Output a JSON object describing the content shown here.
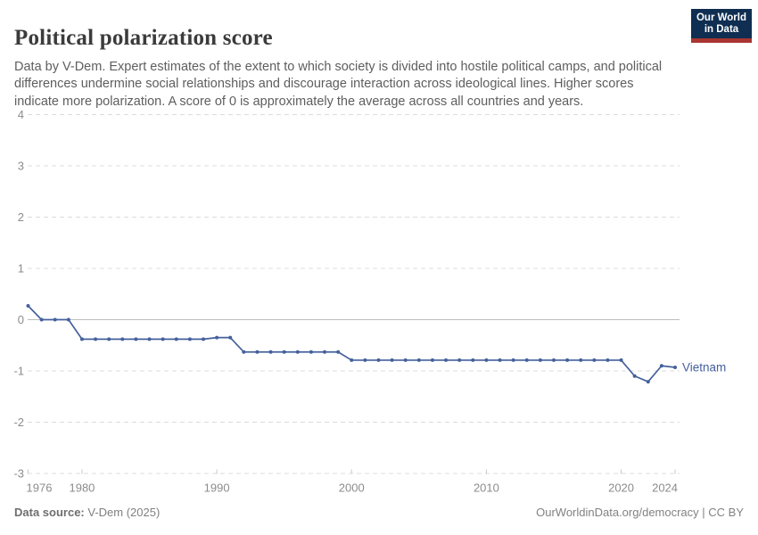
{
  "header": {
    "title": "Political polarization score",
    "subtitle": "Data by V-Dem. Expert estimates of the extent to which society is divided into hostile political camps, and political differences undermine social relationships and discourage interaction across ideological lines. Higher scores indicate more polarization. A score of 0 is approximately the average across all countries and years.",
    "logo": {
      "line1": "Our World",
      "line2": "in Data"
    }
  },
  "chart_data": {
    "type": "line",
    "title": "Political polarization score",
    "x": [
      1976,
      1977,
      1978,
      1979,
      1980,
      1981,
      1982,
      1983,
      1984,
      1985,
      1986,
      1987,
      1988,
      1989,
      1990,
      1991,
      1992,
      1993,
      1994,
      1995,
      1996,
      1997,
      1998,
      1999,
      2000,
      2001,
      2002,
      2003,
      2004,
      2005,
      2006,
      2007,
      2008,
      2009,
      2010,
      2011,
      2012,
      2013,
      2014,
      2015,
      2016,
      2017,
      2018,
      2019,
      2020,
      2021,
      2022,
      2023,
      2024
    ],
    "series": [
      {
        "name": "Vietnam",
        "color": "#44619c",
        "values": [
          0.27,
          0,
          0,
          0,
          -0.38,
          -0.38,
          -0.38,
          -0.38,
          -0.38,
          -0.38,
          -0.38,
          -0.38,
          -0.38,
          -0.38,
          -0.35,
          -0.35,
          -0.63,
          -0.63,
          -0.63,
          -0.63,
          -0.63,
          -0.63,
          -0.63,
          -0.63,
          -0.79,
          -0.79,
          -0.79,
          -0.79,
          -0.79,
          -0.79,
          -0.79,
          -0.79,
          -0.79,
          -0.79,
          -0.79,
          -0.79,
          -0.79,
          -0.79,
          -0.79,
          -0.79,
          -0.79,
          -0.79,
          -0.79,
          -0.79,
          -0.79,
          -1.1,
          -1.21,
          -0.9,
          -0.93
        ]
      }
    ],
    "end_label": "Vietnam",
    "xticks": [
      1976,
      1980,
      1990,
      2000,
      2010,
      2020,
      2024
    ],
    "yticks": [
      4,
      3,
      2,
      1,
      0,
      -1,
      -2,
      -3
    ],
    "xlim": [
      1976,
      2024
    ],
    "ylim": [
      -3,
      4
    ],
    "grid": "horizontal-dashed",
    "zero_line": true,
    "legend_position": "end-of-line"
  },
  "footer": {
    "source_label": "Data source:",
    "source_value": " V-Dem (2025)",
    "rights": "OurWorldinData.org/democracy | CC BY"
  },
  "colors": {
    "line": "#44619c",
    "grid": "#dcdcdc",
    "zero_line": "#bcbcbc",
    "tick_mark": "#c8c8c8",
    "tick_text": "#8c8c8c",
    "title_text": "#3b3b3b",
    "subtitle_text": "#5e5e5e",
    "footer_text": "#808080",
    "logo_bg": "#0f2e51",
    "logo_red": "#a93530"
  }
}
